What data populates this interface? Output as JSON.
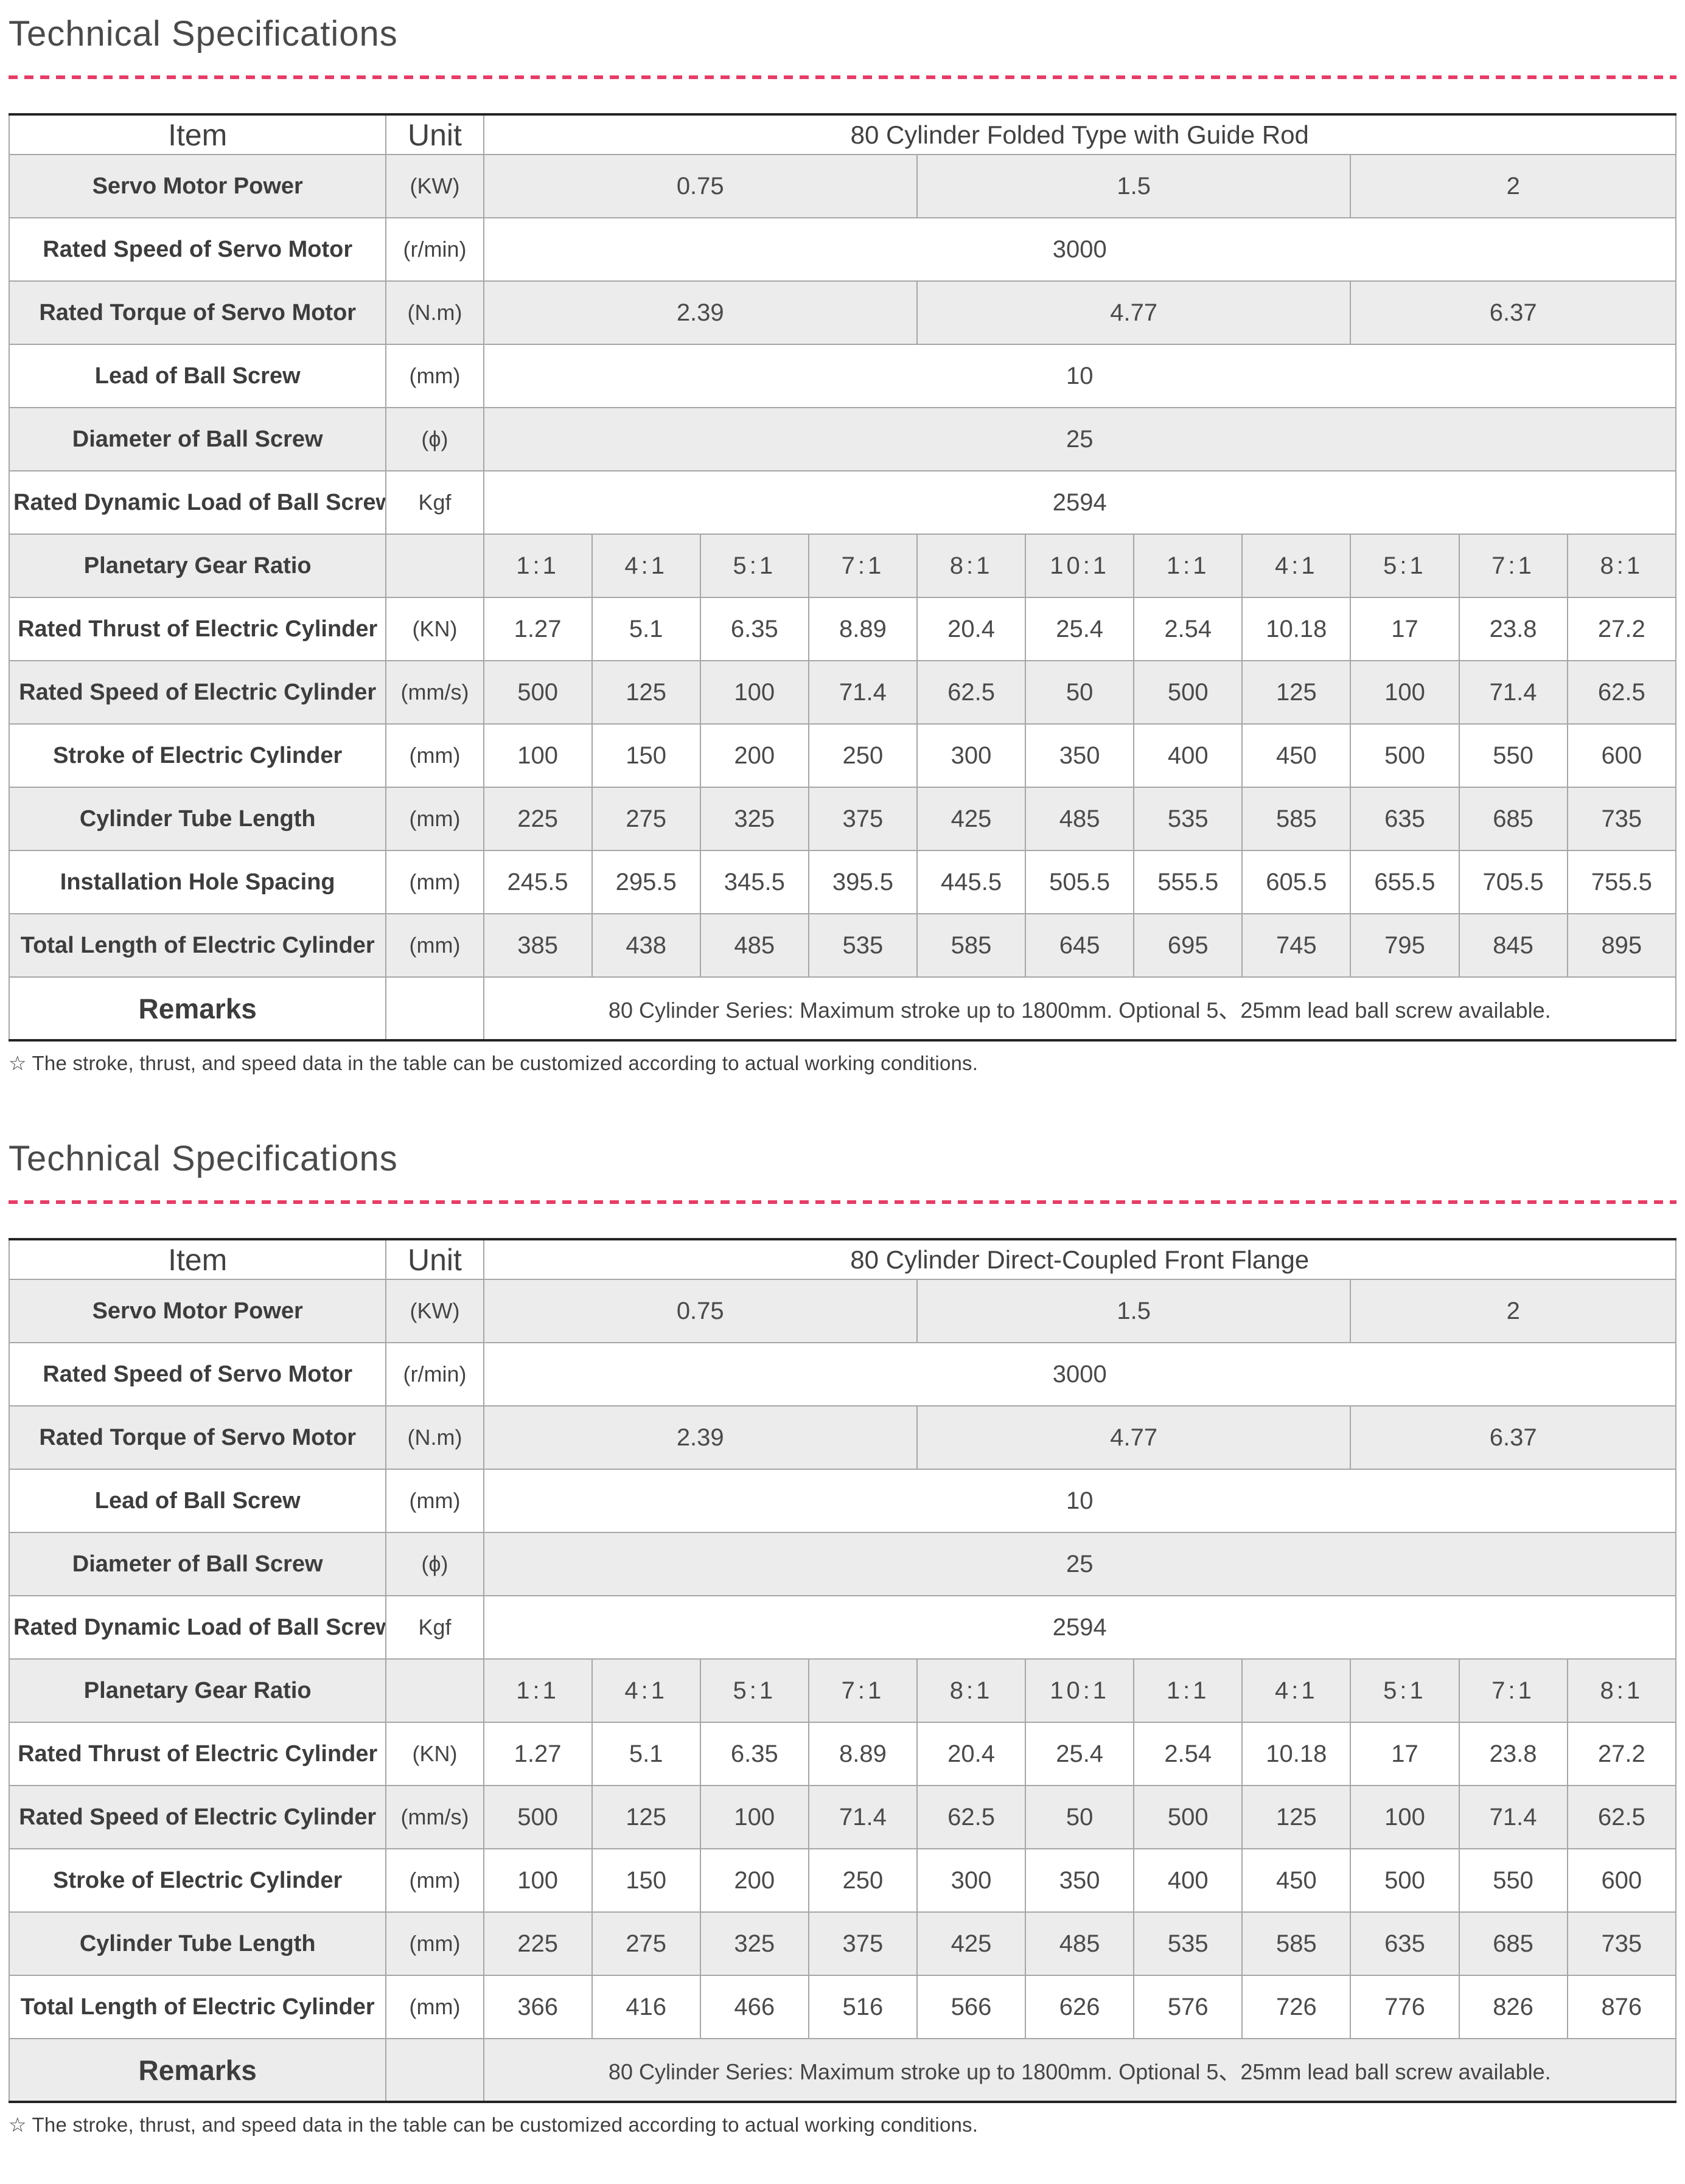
{
  "accent_color": "#e73c64",
  "sections": [
    {
      "title": "Technical Specifications",
      "footnote": "☆ The stroke, thrust, and speed data in the table can be customized according to actual working conditions.",
      "table": {
        "item_header": "Item",
        "unit_header": "Unit",
        "product_header": "80 Cylinder Folded Type with Guide Rod",
        "remarks_label": "Remarks",
        "remarks_text": "80 Cylinder Series: Maximum stroke up to 1800mm. Optional 5、25mm lead ball screw available.",
        "rows": [
          {
            "label": "Servo Motor Power",
            "unit": "(KW)",
            "cells": [
              {
                "t": "0.75",
                "span": 4
              },
              {
                "t": "1.5",
                "span": 4
              },
              {
                "t": "2",
                "span": 3
              }
            ]
          },
          {
            "label": "Rated Speed of Servo Motor",
            "unit": "(r/min)",
            "cells": [
              {
                "t": "3000",
                "span": 11
              }
            ]
          },
          {
            "label": "Rated Torque of Servo Motor",
            "unit": "(N.m)",
            "cells": [
              {
                "t": "2.39",
                "span": 4
              },
              {
                "t": "4.77",
                "span": 4
              },
              {
                "t": "6.37",
                "span": 3
              }
            ]
          },
          {
            "label": "Lead of Ball Screw",
            "unit": "(mm)",
            "cells": [
              {
                "t": "10",
                "span": 11
              }
            ]
          },
          {
            "label": "Diameter of Ball Screw",
            "unit": "(ϕ)",
            "cells": [
              {
                "t": "25",
                "span": 11
              }
            ]
          },
          {
            "label": "Rated Dynamic Load of Ball Screw",
            "unit": "Kgf",
            "cells": [
              {
                "t": "2594",
                "span": 11
              }
            ]
          },
          {
            "label": "Planetary Gear Ratio",
            "unit": "",
            "ratio": true,
            "cells": [
              {
                "t": "1:1"
              },
              {
                "t": "4:1"
              },
              {
                "t": "5:1"
              },
              {
                "t": "7:1"
              },
              {
                "t": "8:1"
              },
              {
                "t": "10:1"
              },
              {
                "t": "1:1"
              },
              {
                "t": "4:1"
              },
              {
                "t": "5:1"
              },
              {
                "t": "7:1"
              },
              {
                "t": "8:1"
              }
            ]
          },
          {
            "label": "Rated Thrust of Electric Cylinder",
            "unit": "(KN)",
            "cells": [
              {
                "t": "1.27"
              },
              {
                "t": "5.1"
              },
              {
                "t": "6.35"
              },
              {
                "t": "8.89"
              },
              {
                "t": "20.4"
              },
              {
                "t": "25.4"
              },
              {
                "t": "2.54"
              },
              {
                "t": "10.18"
              },
              {
                "t": "17"
              },
              {
                "t": "23.8"
              },
              {
                "t": "27.2"
              }
            ]
          },
          {
            "label": "Rated Speed of Electric Cylinder",
            "unit": "(mm/s)",
            "cells": [
              {
                "t": "500"
              },
              {
                "t": "125"
              },
              {
                "t": "100"
              },
              {
                "t": "71.4"
              },
              {
                "t": "62.5"
              },
              {
                "t": "50"
              },
              {
                "t": "500"
              },
              {
                "t": "125"
              },
              {
                "t": "100"
              },
              {
                "t": "71.4"
              },
              {
                "t": "62.5"
              }
            ]
          },
          {
            "label": "Stroke of Electric Cylinder",
            "unit": "(mm)",
            "cells": [
              {
                "t": "100"
              },
              {
                "t": "150"
              },
              {
                "t": "200"
              },
              {
                "t": "250"
              },
              {
                "t": "300"
              },
              {
                "t": "350"
              },
              {
                "t": "400"
              },
              {
                "t": "450"
              },
              {
                "t": "500"
              },
              {
                "t": "550"
              },
              {
                "t": "600"
              }
            ]
          },
          {
            "label": "Cylinder Tube Length",
            "unit": "(mm)",
            "cells": [
              {
                "t": "225"
              },
              {
                "t": "275"
              },
              {
                "t": "325"
              },
              {
                "t": "375"
              },
              {
                "t": "425"
              },
              {
                "t": "485"
              },
              {
                "t": "535"
              },
              {
                "t": "585"
              },
              {
                "t": "635"
              },
              {
                "t": "685"
              },
              {
                "t": "735"
              }
            ]
          },
          {
            "label": "Installation Hole Spacing",
            "unit": "(mm)",
            "cells": [
              {
                "t": "245.5"
              },
              {
                "t": "295.5"
              },
              {
                "t": "345.5"
              },
              {
                "t": "395.5"
              },
              {
                "t": "445.5"
              },
              {
                "t": "505.5"
              },
              {
                "t": "555.5"
              },
              {
                "t": "605.5"
              },
              {
                "t": "655.5"
              },
              {
                "t": "705.5"
              },
              {
                "t": "755.5"
              }
            ]
          },
          {
            "label": "Total Length of Electric Cylinder",
            "unit": "(mm)",
            "cells": [
              {
                "t": "385"
              },
              {
                "t": "438"
              },
              {
                "t": "485"
              },
              {
                "t": "535"
              },
              {
                "t": "585"
              },
              {
                "t": "645"
              },
              {
                "t": "695"
              },
              {
                "t": "745"
              },
              {
                "t": "795"
              },
              {
                "t": "845"
              },
              {
                "t": "895"
              }
            ]
          }
        ]
      }
    },
    {
      "title": "Technical Specifications",
      "footnote": "☆ The stroke, thrust, and speed data in the table can be customized according to actual working conditions.",
      "table": {
        "item_header": "Item",
        "unit_header": "Unit",
        "product_header": "80  Cylinder Direct-Coupled Front Flange",
        "remarks_label": "Remarks",
        "remarks_text": "80 Cylinder Series: Maximum stroke up to 1800mm. Optional 5、25mm lead ball screw available.",
        "rows": [
          {
            "label": "Servo Motor Power",
            "unit": "(KW)",
            "cells": [
              {
                "t": "0.75",
                "span": 4
              },
              {
                "t": "1.5",
                "span": 4
              },
              {
                "t": "2",
                "span": 3
              }
            ]
          },
          {
            "label": "Rated Speed of Servo Motor",
            "unit": "(r/min)",
            "cells": [
              {
                "t": "3000",
                "span": 11
              }
            ]
          },
          {
            "label": "Rated Torque of Servo Motor",
            "unit": "(N.m)",
            "cells": [
              {
                "t": "2.39",
                "span": 4
              },
              {
                "t": "4.77",
                "span": 4
              },
              {
                "t": "6.37",
                "span": 3
              }
            ]
          },
          {
            "label": "Lead of Ball Screw",
            "unit": "(mm)",
            "cells": [
              {
                "t": "10",
                "span": 11
              }
            ]
          },
          {
            "label": "Diameter of Ball Screw",
            "unit": "(ϕ)",
            "cells": [
              {
                "t": "25",
                "span": 11
              }
            ]
          },
          {
            "label": "Rated Dynamic Load of Ball Screw",
            "unit": "Kgf",
            "cells": [
              {
                "t": "2594",
                "span": 11
              }
            ]
          },
          {
            "label": "Planetary Gear Ratio",
            "unit": "",
            "ratio": true,
            "cells": [
              {
                "t": "1:1"
              },
              {
                "t": "4:1"
              },
              {
                "t": "5:1"
              },
              {
                "t": "7:1"
              },
              {
                "t": "8:1"
              },
              {
                "t": "10:1"
              },
              {
                "t": "1:1"
              },
              {
                "t": "4:1"
              },
              {
                "t": "5:1"
              },
              {
                "t": "7:1"
              },
              {
                "t": "8:1"
              }
            ]
          },
          {
            "label": "Rated Thrust of Electric Cylinder",
            "unit": "(KN)",
            "cells": [
              {
                "t": "1.27"
              },
              {
                "t": "5.1"
              },
              {
                "t": "6.35"
              },
              {
                "t": "8.89"
              },
              {
                "t": "20.4"
              },
              {
                "t": "25.4"
              },
              {
                "t": "2.54"
              },
              {
                "t": "10.18"
              },
              {
                "t": "17"
              },
              {
                "t": "23.8"
              },
              {
                "t": "27.2"
              }
            ]
          },
          {
            "label": "Rated Speed of Electric Cylinder",
            "unit": "(mm/s)",
            "cells": [
              {
                "t": "500"
              },
              {
                "t": "125"
              },
              {
                "t": "100"
              },
              {
                "t": "71.4"
              },
              {
                "t": "62.5"
              },
              {
                "t": "50"
              },
              {
                "t": "500"
              },
              {
                "t": "125"
              },
              {
                "t": "100"
              },
              {
                "t": "71.4"
              },
              {
                "t": "62.5"
              }
            ]
          },
          {
            "label": "Stroke of Electric Cylinder",
            "unit": "(mm)",
            "cells": [
              {
                "t": "100"
              },
              {
                "t": "150"
              },
              {
                "t": "200"
              },
              {
                "t": "250"
              },
              {
                "t": "300"
              },
              {
                "t": "350"
              },
              {
                "t": "400"
              },
              {
                "t": "450"
              },
              {
                "t": "500"
              },
              {
                "t": "550"
              },
              {
                "t": "600"
              }
            ]
          },
          {
            "label": "Cylinder Tube Length",
            "unit": "(mm)",
            "cells": [
              {
                "t": "225"
              },
              {
                "t": "275"
              },
              {
                "t": "325"
              },
              {
                "t": "375"
              },
              {
                "t": "425"
              },
              {
                "t": "485"
              },
              {
                "t": "535"
              },
              {
                "t": "585"
              },
              {
                "t": "635"
              },
              {
                "t": "685"
              },
              {
                "t": "735"
              }
            ]
          },
          {
            "label": "Total Length of Electric Cylinder",
            "unit": "(mm)",
            "cells": [
              {
                "t": "366"
              },
              {
                "t": "416"
              },
              {
                "t": "466"
              },
              {
                "t": "516"
              },
              {
                "t": "566"
              },
              {
                "t": "626"
              },
              {
                "t": "576"
              },
              {
                "t": "726"
              },
              {
                "t": "776"
              },
              {
                "t": "826"
              },
              {
                "t": "876"
              }
            ]
          }
        ]
      }
    }
  ]
}
